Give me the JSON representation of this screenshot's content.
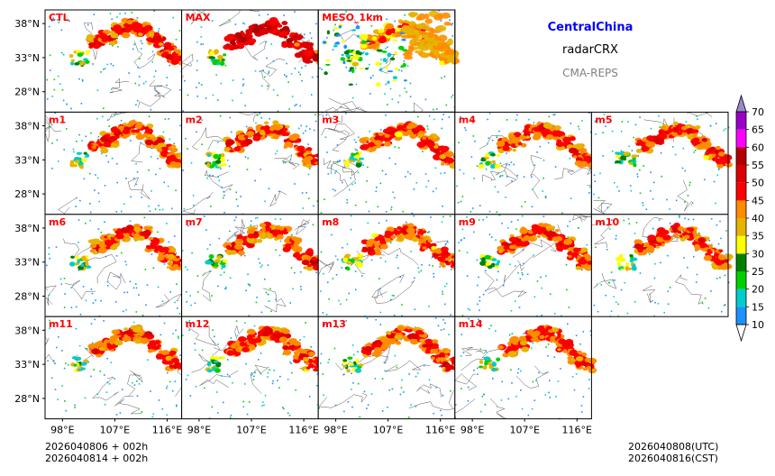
{
  "header": {
    "region": "CentralChina",
    "variable": "radarCRX",
    "system": "CMA-REPS"
  },
  "footer": {
    "init_utc": "2026040806  +  002h",
    "init_cst": "2026040814  +  002h",
    "valid_utc": "2026040808(UTC)",
    "valid_cst": "2026040816(CST)"
  },
  "colors": {
    "region_title": "#0000ff",
    "system_title": "#808080",
    "panel_label": "#ff0000"
  },
  "chart_data": {
    "type": "heatmap",
    "title": "CentralChina radarCRX CMA-REPS",
    "xlabel": "",
    "ylabel": "",
    "x_ticks": [
      "98°E",
      "107°E",
      "116°E"
    ],
    "x_tick_values": [
      98,
      107,
      116
    ],
    "y_ticks": [
      "38°N",
      "33°N",
      "28°N"
    ],
    "y_tick_values": [
      38,
      33,
      28
    ],
    "xlim": [
      95,
      118.5
    ],
    "ylim": [
      25,
      40
    ],
    "panels": [
      [
        "CTL",
        "MAX",
        "MESO_1km"
      ],
      [
        "m1",
        "m2",
        "m3",
        "m4",
        "m5"
      ],
      [
        "m6",
        "m7",
        "m8",
        "m9",
        "m10"
      ],
      [
        "m11",
        "m12",
        "m13",
        "m14"
      ]
    ],
    "colorbar": {
      "levels": [
        10,
        15,
        20,
        25,
        30,
        35,
        40,
        45,
        50,
        55,
        60,
        65,
        70
      ],
      "colors": [
        "#1e90ff",
        "#00cccc",
        "#00d000",
        "#008000",
        "#ffff00",
        "#e6b400",
        "#ff8c00",
        "#ff0000",
        "#dd0000",
        "#b00000",
        "#ff00ff",
        "#9a00c8",
        "#9d86d0"
      ],
      "extend": "both",
      "orientation": "vertical"
    }
  }
}
